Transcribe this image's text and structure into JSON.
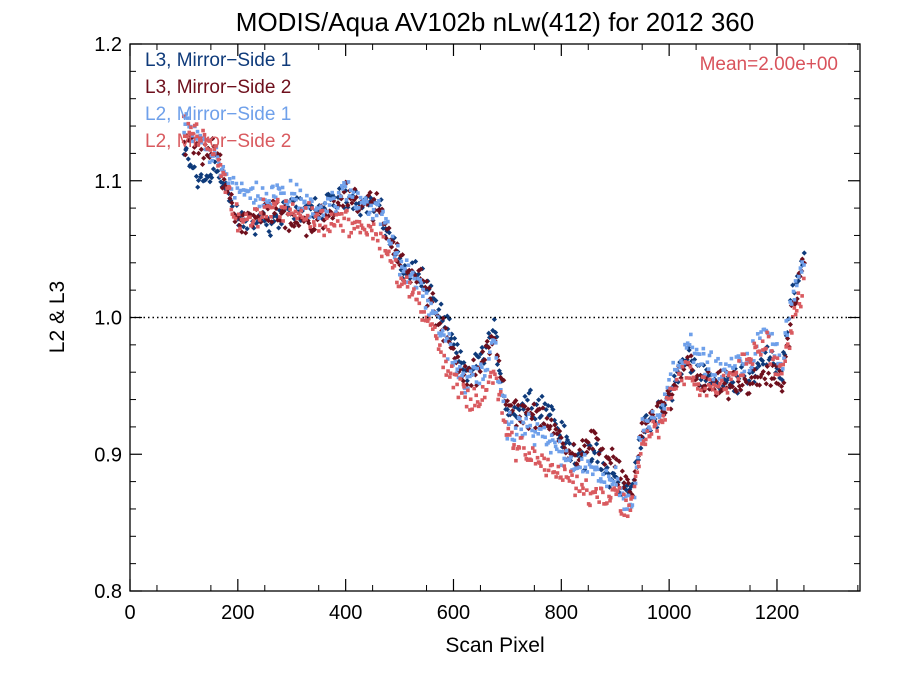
{
  "chart_data": {
    "type": "scatter",
    "title": "MODIS/Aqua AV102b nLw(412) for 2012 360",
    "xlabel": "Scan Pixel",
    "ylabel": "L2 & L3",
    "xlim": [
      0,
      1354
    ],
    "ylim": [
      0.8,
      1.2
    ],
    "x_ticks": [
      0,
      200,
      400,
      600,
      800,
      1000,
      1200
    ],
    "y_ticks": [
      0.8,
      0.9,
      1.0,
      1.1,
      1.2
    ],
    "x_tick_labels": [
      "0",
      "200",
      "400",
      "600",
      "800",
      "1000",
      "1200"
    ],
    "y_tick_labels": [
      "0.8",
      "0.9",
      "1.0",
      "1.1",
      "1.2"
    ],
    "reference_line": {
      "y": 1.0,
      "style": "dotted"
    },
    "annotation": {
      "text": "Mean=2.00e+00",
      "position": "top-right",
      "color": "#d9535c"
    },
    "legend_position": "top-left",
    "grid": false,
    "series": [
      {
        "name": "L3, Mirror−Side 1",
        "color": "#0e3a7a",
        "marker": "diamond",
        "profile": [
          [
            100,
            1.12
          ],
          [
            130,
            1.1
          ],
          [
            160,
            1.11
          ],
          [
            200,
            1.07
          ],
          [
            260,
            1.07
          ],
          [
            300,
            1.08
          ],
          [
            350,
            1.08
          ],
          [
            400,
            1.09
          ],
          [
            460,
            1.08
          ],
          [
            500,
            1.04
          ],
          [
            540,
            1.03
          ],
          [
            580,
            1.0
          ],
          [
            620,
            0.96
          ],
          [
            650,
            0.97
          ],
          [
            675,
            0.99
          ],
          [
            700,
            0.93
          ],
          [
            740,
            0.94
          ],
          [
            780,
            0.93
          ],
          [
            820,
            0.9
          ],
          [
            860,
            0.9
          ],
          [
            900,
            0.88
          ],
          [
            930,
            0.87
          ],
          [
            950,
            0.92
          ],
          [
            980,
            0.93
          ],
          [
            1000,
            0.94
          ],
          [
            1030,
            0.97
          ],
          [
            1060,
            0.96
          ],
          [
            1100,
            0.95
          ],
          [
            1150,
            0.96
          ],
          [
            1180,
            0.97
          ],
          [
            1210,
            0.96
          ],
          [
            1230,
            1.02
          ],
          [
            1250,
            1.04
          ]
        ]
      },
      {
        "name": "L3, Mirror−Side 2",
        "color": "#6e0f1c",
        "marker": "diamond",
        "profile": [
          [
            100,
            1.13
          ],
          [
            130,
            1.12
          ],
          [
            160,
            1.12
          ],
          [
            200,
            1.07
          ],
          [
            260,
            1.08
          ],
          [
            300,
            1.07
          ],
          [
            350,
            1.07
          ],
          [
            400,
            1.09
          ],
          [
            460,
            1.08
          ],
          [
            500,
            1.04
          ],
          [
            540,
            1.03
          ],
          [
            580,
            0.99
          ],
          [
            620,
            0.96
          ],
          [
            650,
            0.96
          ],
          [
            675,
            0.99
          ],
          [
            700,
            0.93
          ],
          [
            740,
            0.93
          ],
          [
            780,
            0.92
          ],
          [
            820,
            0.9
          ],
          [
            860,
            0.91
          ],
          [
            900,
            0.89
          ],
          [
            930,
            0.87
          ],
          [
            950,
            0.92
          ],
          [
            980,
            0.93
          ],
          [
            1000,
            0.94
          ],
          [
            1030,
            0.97
          ],
          [
            1060,
            0.95
          ],
          [
            1100,
            0.95
          ],
          [
            1150,
            0.95
          ],
          [
            1180,
            0.96
          ],
          [
            1210,
            0.95
          ],
          [
            1230,
            1.01
          ],
          [
            1250,
            1.04
          ]
        ]
      },
      {
        "name": "L2, Mirror−Side 1",
        "color": "#6fa0ea",
        "marker": "square",
        "profile": [
          [
            100,
            1.14
          ],
          [
            130,
            1.13
          ],
          [
            160,
            1.12
          ],
          [
            200,
            1.09
          ],
          [
            260,
            1.09
          ],
          [
            300,
            1.09
          ],
          [
            350,
            1.08
          ],
          [
            400,
            1.09
          ],
          [
            460,
            1.08
          ],
          [
            500,
            1.04
          ],
          [
            540,
            1.02
          ],
          [
            580,
            0.99
          ],
          [
            620,
            0.95
          ],
          [
            650,
            0.96
          ],
          [
            675,
            0.98
          ],
          [
            700,
            0.92
          ],
          [
            740,
            0.92
          ],
          [
            780,
            0.91
          ],
          [
            820,
            0.89
          ],
          [
            860,
            0.89
          ],
          [
            900,
            0.88
          ],
          [
            930,
            0.86
          ],
          [
            950,
            0.92
          ],
          [
            980,
            0.93
          ],
          [
            1000,
            0.95
          ],
          [
            1030,
            0.98
          ],
          [
            1060,
            0.97
          ],
          [
            1100,
            0.96
          ],
          [
            1150,
            0.97
          ],
          [
            1180,
            0.99
          ],
          [
            1210,
            0.97
          ],
          [
            1230,
            1.02
          ],
          [
            1250,
            1.04
          ]
        ]
      },
      {
        "name": "L2, Mirror−Side 2",
        "color": "#d95a5f",
        "marker": "square",
        "profile": [
          [
            100,
            1.14
          ],
          [
            130,
            1.13
          ],
          [
            160,
            1.12
          ],
          [
            200,
            1.07
          ],
          [
            260,
            1.08
          ],
          [
            300,
            1.08
          ],
          [
            350,
            1.07
          ],
          [
            400,
            1.07
          ],
          [
            460,
            1.06
          ],
          [
            500,
            1.03
          ],
          [
            540,
            1.01
          ],
          [
            580,
            0.97
          ],
          [
            620,
            0.94
          ],
          [
            650,
            0.94
          ],
          [
            675,
            0.96
          ],
          [
            700,
            0.91
          ],
          [
            740,
            0.9
          ],
          [
            780,
            0.89
          ],
          [
            820,
            0.88
          ],
          [
            860,
            0.87
          ],
          [
            900,
            0.87
          ],
          [
            930,
            0.86
          ],
          [
            950,
            0.91
          ],
          [
            980,
            0.92
          ],
          [
            1000,
            0.94
          ],
          [
            1030,
            0.96
          ],
          [
            1060,
            0.95
          ],
          [
            1100,
            0.95
          ],
          [
            1150,
            0.97
          ],
          [
            1180,
            0.98
          ],
          [
            1210,
            0.96
          ],
          [
            1230,
            1.0
          ],
          [
            1250,
            1.02
          ]
        ]
      }
    ]
  }
}
